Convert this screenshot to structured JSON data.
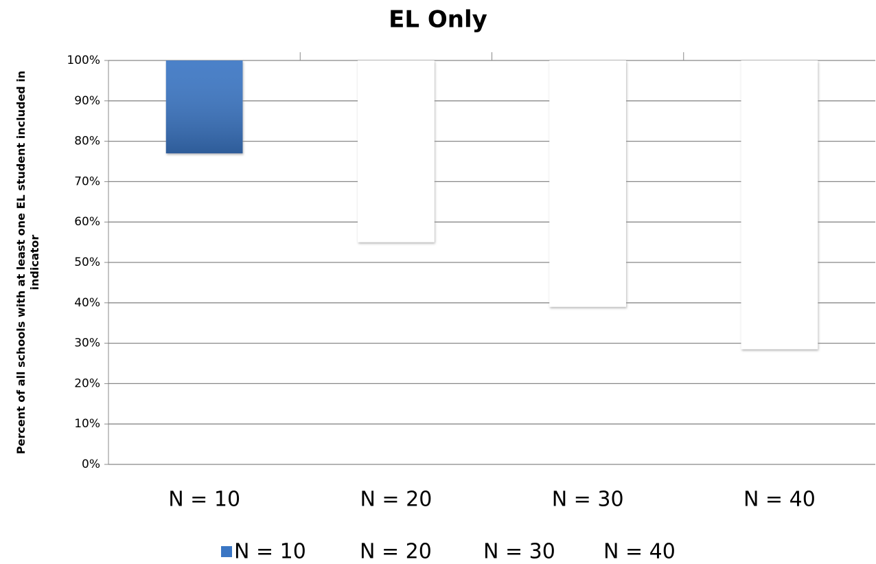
{
  "chart_data": {
    "type": "bar",
    "title": "EL Only",
    "ylabel": "Percent of all schools with at least one EL student included in indicator",
    "categories": [
      "N = 10",
      "N = 20",
      "N = 30",
      "N = 40"
    ],
    "series": [
      {
        "name": "N = 10",
        "color": "#3a76c4",
        "values": [
          77,
          null,
          null,
          null
        ]
      },
      {
        "name": "N = 20",
        "color": "#ffffff",
        "values": [
          null,
          55,
          null,
          null
        ]
      },
      {
        "name": "N = 30",
        "color": "#ffffff",
        "values": [
          null,
          null,
          39,
          null
        ]
      },
      {
        "name": "N = 40",
        "color": "#ffffff",
        "values": [
          null,
          null,
          null,
          28.5
        ]
      }
    ],
    "ylim": [
      0,
      100
    ],
    "yticks": [
      {
        "value": 0,
        "label": "0%"
      },
      {
        "value": 10,
        "label": "10%"
      },
      {
        "value": 20,
        "label": "20%"
      },
      {
        "value": 30,
        "label": "30%"
      },
      {
        "value": 40,
        "label": "40%"
      },
      {
        "value": 50,
        "label": "50%"
      },
      {
        "value": 60,
        "label": "60%"
      },
      {
        "value": 70,
        "label": "70%"
      },
      {
        "value": 80,
        "label": "80%"
      },
      {
        "value": 90,
        "label": "90%"
      },
      {
        "value": 100,
        "label": "100%"
      }
    ],
    "grid": true,
    "x_axis_at_max": true,
    "legend": "bottom"
  }
}
